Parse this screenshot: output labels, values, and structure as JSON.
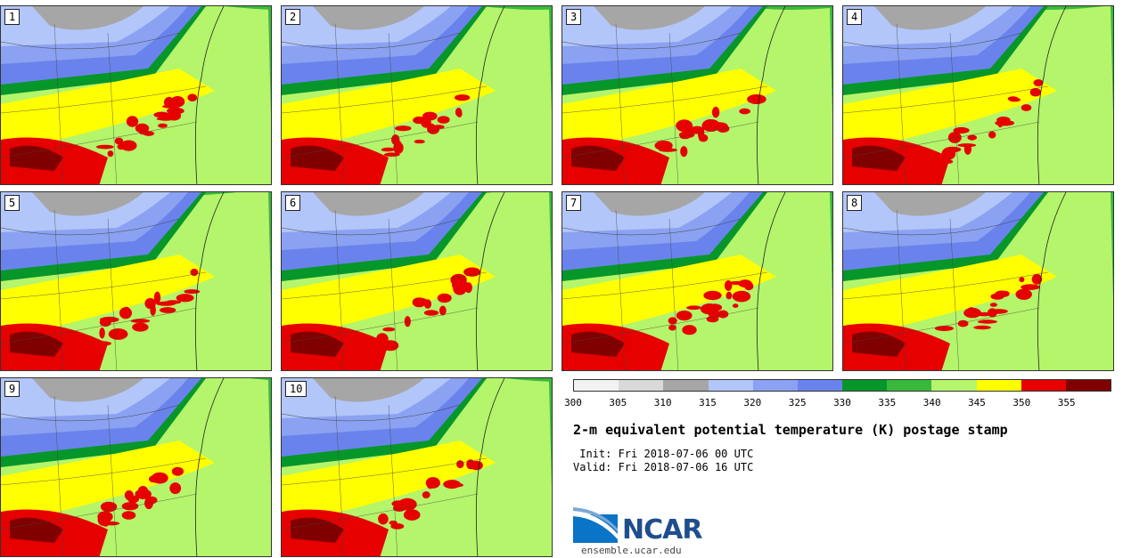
{
  "title": "2-m equivalent potential temperature (K) postage stamp",
  "init": " Init: Fri 2018-07-06 00 UTC",
  "valid": "Valid: Fri 2018-07-06 16 UTC",
  "org": "NCAR",
  "website": "ensemble.ucar.edu",
  "members": [
    "1",
    "2",
    "3",
    "4",
    "5",
    "6",
    "7",
    "8",
    "9",
    "10"
  ],
  "colorbar": {
    "ticks": [
      "300",
      "305",
      "310",
      "315",
      "320",
      "325",
      "330",
      "335",
      "340",
      "345",
      "350",
      "355"
    ],
    "colors": [
      "#f2f2f2",
      "#d9d9d9",
      "#a6a6a6",
      "#b3c6fa",
      "#8ba2f2",
      "#6a83ec",
      "#07962a",
      "#39b93c",
      "#b4f56b",
      "#ffff00",
      "#e60000",
      "#800000"
    ]
  }
}
